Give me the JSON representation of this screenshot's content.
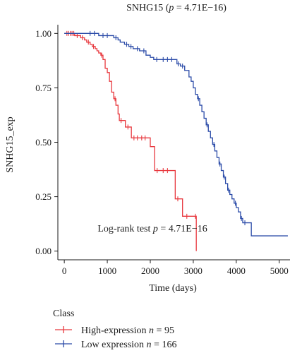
{
  "chart_data": {
    "type": "line",
    "chart_kind": "kaplan-meier survival curve",
    "title_prefix": "SNHG15 (",
    "title_p": "p",
    "title_suffix": " = 4.71E−16)",
    "xlabel": "Time (days)",
    "ylabel": "SNHG15_exp",
    "xlim": [
      -150,
      5250
    ],
    "ylim": [
      -0.04,
      1.04
    ],
    "x_ticks": [
      0,
      1000,
      2000,
      3000,
      4000,
      5000
    ],
    "x_tick_labels": [
      "0",
      "1000",
      "2000",
      "3000",
      "4000",
      "5000"
    ],
    "y_ticks": [
      0,
      0.25,
      0.5,
      0.75,
      1.0
    ],
    "y_tick_labels": [
      "0.00",
      "0.25",
      "0.50",
      "0.75",
      "1.00"
    ],
    "grid": false,
    "annotation": {
      "prefix": "Log-rank test ",
      "italic": "p",
      "suffix": " = 4.71E−16",
      "x": 2050,
      "y": 0.09
    },
    "legend": {
      "title": "Class",
      "placement": "bottom-left",
      "items": [
        {
          "name_text": "High-expression ",
          "italic": "n",
          "value_text": " = 95",
          "color": "#e8393f"
        },
        {
          "name_text": "Low expression ",
          "italic": "n",
          "value_text": " = 166",
          "color": "#2b4ba8"
        }
      ]
    },
    "series": [
      {
        "name": "High-expression",
        "color": "#e8393f",
        "steps": [
          [
            0,
            1.0
          ],
          [
            240,
            0.99
          ],
          [
            380,
            0.98
          ],
          [
            470,
            0.97
          ],
          [
            520,
            0.96
          ],
          [
            600,
            0.95
          ],
          [
            650,
            0.94
          ],
          [
            720,
            0.93
          ],
          [
            760,
            0.92
          ],
          [
            800,
            0.91
          ],
          [
            850,
            0.9
          ],
          [
            900,
            0.88
          ],
          [
            950,
            0.84
          ],
          [
            1000,
            0.82
          ],
          [
            1050,
            0.78
          ],
          [
            1100,
            0.73
          ],
          [
            1150,
            0.7
          ],
          [
            1200,
            0.67
          ],
          [
            1250,
            0.63
          ],
          [
            1280,
            0.6
          ],
          [
            1420,
            0.57
          ],
          [
            1560,
            0.52
          ],
          [
            2000,
            0.48
          ],
          [
            2100,
            0.37
          ],
          [
            2580,
            0.24
          ],
          [
            2750,
            0.16
          ],
          [
            3070,
            0.0
          ]
        ],
        "end_x": 3070,
        "censors": [
          [
            60,
            1.0
          ],
          [
            100,
            1.0
          ],
          [
            140,
            1.0
          ],
          [
            180,
            1.0
          ],
          [
            220,
            1.0
          ],
          [
            300,
            0.99
          ],
          [
            420,
            0.98
          ],
          [
            560,
            0.96
          ],
          [
            680,
            0.94
          ],
          [
            870,
            0.9
          ],
          [
            1180,
            0.7
          ],
          [
            1320,
            0.6
          ],
          [
            1480,
            0.57
          ],
          [
            1620,
            0.52
          ],
          [
            1700,
            0.52
          ],
          [
            1800,
            0.52
          ],
          [
            1880,
            0.52
          ],
          [
            2160,
            0.37
          ],
          [
            2300,
            0.37
          ],
          [
            2400,
            0.37
          ],
          [
            2640,
            0.24
          ],
          [
            2850,
            0.16
          ],
          [
            3050,
            0.16
          ]
        ]
      },
      {
        "name": "Low expression",
        "color": "#2b4ba8",
        "steps": [
          [
            0,
            1.0
          ],
          [
            800,
            0.99
          ],
          [
            1150,
            0.98
          ],
          [
            1250,
            0.97
          ],
          [
            1300,
            0.96
          ],
          [
            1400,
            0.95
          ],
          [
            1500,
            0.94
          ],
          [
            1600,
            0.93
          ],
          [
            1750,
            0.92
          ],
          [
            1900,
            0.9
          ],
          [
            2000,
            0.89
          ],
          [
            2080,
            0.88
          ],
          [
            2620,
            0.86
          ],
          [
            2700,
            0.85
          ],
          [
            2800,
            0.83
          ],
          [
            2900,
            0.8
          ],
          [
            2950,
            0.78
          ],
          [
            3000,
            0.75
          ],
          [
            3050,
            0.72
          ],
          [
            3100,
            0.7
          ],
          [
            3150,
            0.67
          ],
          [
            3200,
            0.64
          ],
          [
            3250,
            0.61
          ],
          [
            3300,
            0.58
          ],
          [
            3350,
            0.55
          ],
          [
            3400,
            0.52
          ],
          [
            3450,
            0.49
          ],
          [
            3500,
            0.46
          ],
          [
            3550,
            0.43
          ],
          [
            3600,
            0.4
          ],
          [
            3650,
            0.37
          ],
          [
            3700,
            0.34
          ],
          [
            3750,
            0.31
          ],
          [
            3800,
            0.28
          ],
          [
            3850,
            0.26
          ],
          [
            3900,
            0.24
          ],
          [
            3950,
            0.22
          ],
          [
            4000,
            0.2
          ],
          [
            4050,
            0.18
          ],
          [
            4100,
            0.15
          ],
          [
            4150,
            0.13
          ],
          [
            4350,
            0.07
          ]
        ],
        "end_x": 5200,
        "censors": [
          [
            600,
            1.0
          ],
          [
            700,
            1.0
          ],
          [
            900,
            0.99
          ],
          [
            1000,
            0.99
          ],
          [
            1200,
            0.98
          ],
          [
            1450,
            0.95
          ],
          [
            1550,
            0.94
          ],
          [
            1700,
            0.93
          ],
          [
            1850,
            0.92
          ],
          [
            2150,
            0.88
          ],
          [
            2300,
            0.88
          ],
          [
            2400,
            0.88
          ],
          [
            2500,
            0.88
          ],
          [
            2650,
            0.86
          ],
          [
            2750,
            0.85
          ],
          [
            3120,
            0.7
          ],
          [
            3320,
            0.58
          ],
          [
            3480,
            0.49
          ],
          [
            3620,
            0.4
          ],
          [
            3720,
            0.34
          ],
          [
            3820,
            0.28
          ],
          [
            3980,
            0.22
          ],
          [
            4120,
            0.15
          ],
          [
            4200,
            0.13
          ]
        ]
      }
    ]
  }
}
